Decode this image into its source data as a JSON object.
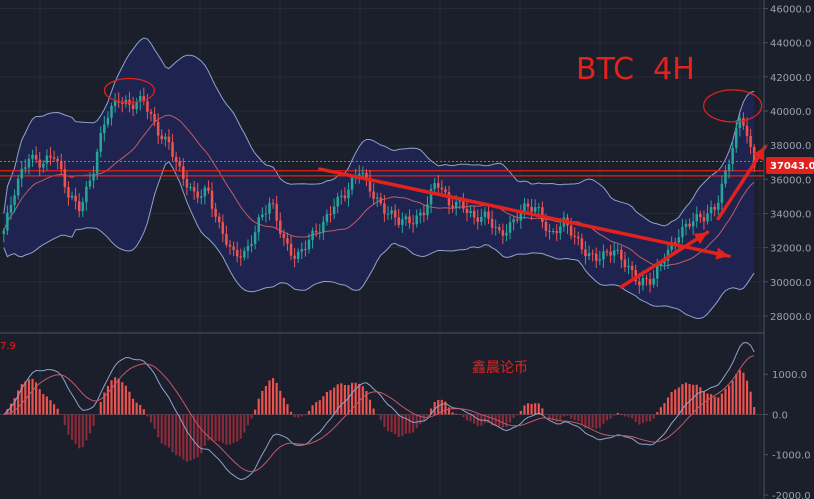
{
  "chart_data": {
    "type": "candlestick",
    "title": "BTC  4H",
    "watermark": "鑫晨论币",
    "indicator_label": "7.9",
    "price_badge": "37043.0",
    "price_axis": {
      "range": [
        27000,
        46500
      ],
      "ticks": [
        "28000.0",
        "30000.0",
        "32000.0",
        "34000.0",
        "36000.0",
        "38000.0",
        "40000.0",
        "42000.0",
        "44000.0",
        "46000.0"
      ]
    },
    "macd_axis": {
      "range": [
        -2100,
        2000
      ],
      "ticks": [
        "1000.0",
        "0.0",
        "-1000.0",
        "-2000.0"
      ]
    },
    "closes": [
      33000,
      35500,
      37500,
      37000,
      37300,
      35200,
      34500,
      36300,
      39500,
      40900,
      40300,
      40500,
      39000,
      38200,
      36000,
      35000,
      35600,
      33000,
      31500,
      31800,
      33500,
      34500,
      32500,
      31500,
      32300,
      33200,
      34800,
      35200,
      36500,
      35300,
      34200,
      33400,
      33600,
      34200,
      35800,
      34500,
      34800,
      33600,
      33700,
      32900,
      33500,
      34200,
      34300,
      32800,
      33400,
      32400,
      31700,
      31400,
      31700,
      31100,
      30000,
      29900,
      31600,
      32900,
      33400,
      33700,
      34600,
      37000,
      39700,
      36900
    ],
    "indicators": {
      "bollinger": "20,2",
      "moving_average": "20",
      "macd": "12,26,9"
    },
    "horizontal_levels": [
      36500,
      36200
    ],
    "current_price_line": 37043,
    "colors": {
      "up": "#26a69a",
      "down": "#ef5350",
      "annotation": "#e3221e",
      "band": "#8fa3c9",
      "band_fill": "#1e2656",
      "ma": "#c05a6a",
      "background": "#1b1f2b",
      "grid": "#262b38",
      "badge": "#e3221e"
    }
  }
}
